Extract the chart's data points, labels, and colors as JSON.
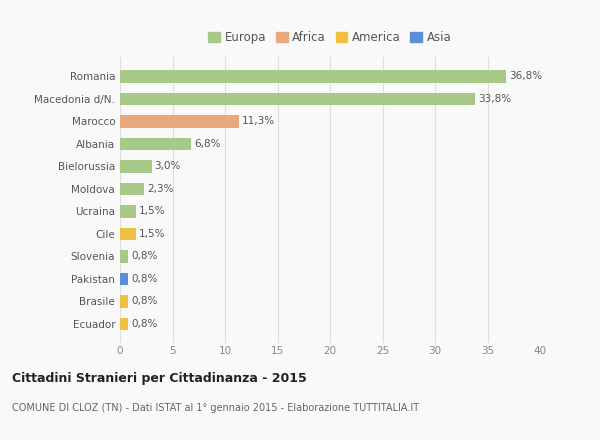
{
  "categories": [
    "Ecuador",
    "Brasile",
    "Pakistan",
    "Slovenia",
    "Cile",
    "Ucraina",
    "Moldova",
    "Bielorussia",
    "Albania",
    "Marocco",
    "Macedonia d/N.",
    "Romania"
  ],
  "values": [
    0.8,
    0.8,
    0.8,
    0.8,
    1.5,
    1.5,
    2.3,
    3.0,
    6.8,
    11.3,
    33.8,
    36.8
  ],
  "labels": [
    "0,8%",
    "0,8%",
    "0,8%",
    "0,8%",
    "1,5%",
    "1,5%",
    "2,3%",
    "3,0%",
    "6,8%",
    "11,3%",
    "33,8%",
    "36,8%"
  ],
  "colors": [
    "#f0c040",
    "#f0c040",
    "#5b8ed6",
    "#a8c888",
    "#f0c040",
    "#a8c888",
    "#a8c888",
    "#a8c888",
    "#a8c888",
    "#e8a87c",
    "#a8c888",
    "#a8c888"
  ],
  "continent_colors": {
    "Europa": "#a8c888",
    "Africa": "#e8a87c",
    "America": "#f0c040",
    "Asia": "#5b8ed6"
  },
  "xlim": [
    0,
    40
  ],
  "xticks": [
    0,
    5,
    10,
    15,
    20,
    25,
    30,
    35,
    40
  ],
  "title": "Cittadini Stranieri per Cittadinanza - 2015",
  "subtitle": "COMUNE DI CLOZ (TN) - Dati ISTAT al 1° gennaio 2015 - Elaborazione TUTTITALIA.IT",
  "background_color": "#f9f9f9",
  "grid_color": "#dddddd",
  "label_fontsize": 7.5,
  "tick_fontsize": 7.5
}
